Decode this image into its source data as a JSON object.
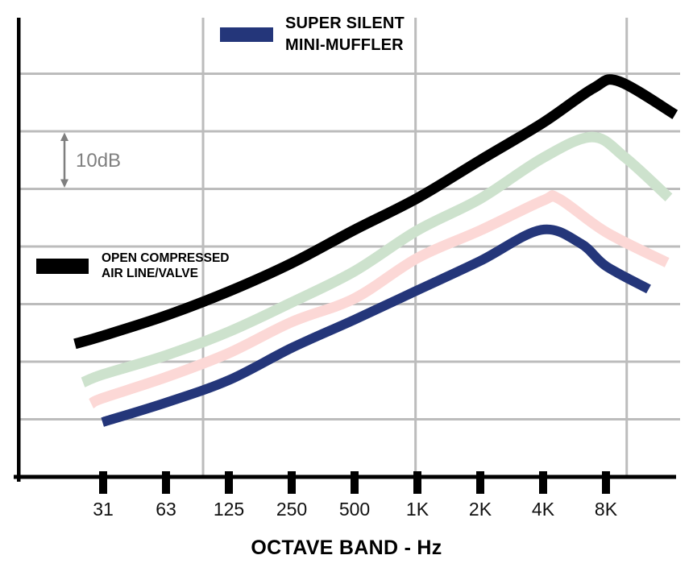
{
  "legend": {
    "mini_muffler": {
      "line1": "SUPER SILENT",
      "line2": "MINI-MUFFLER",
      "color": "#24367a"
    },
    "open_air": {
      "line1": "OPEN COMPRESSED",
      "line2": "AIR LINE/VALVE",
      "color": "#000000"
    }
  },
  "scale_marker": {
    "label": "10dB",
    "span_db": 10,
    "color": "#7f7f7f"
  },
  "chart_data": {
    "type": "line",
    "title": "",
    "xlabel": "OCTAVE BAND - Hz",
    "x_categories": [
      "31",
      "63",
      "125",
      "250",
      "500",
      "1K",
      "2K",
      "4K",
      "8K"
    ],
    "x_scale": "octave bands (log2 spacing)",
    "y_unit": "sound level in relative dB (y-axis unlabeled; 10dB interval marker shown between gridlines)",
    "grid": {
      "horizontal_lines": 7,
      "horizontal_spacing_db": 10,
      "vertical_lines_band_index": [
        1.59,
        4.97,
        8.33
      ],
      "color": "#bcbcbc"
    },
    "legend_position": "mini-muffler top-center, open-air-line mid-left",
    "series": [
      {
        "name": "OPEN COMPRESSED AIR LINE/VALVE",
        "slug": "open-air-line",
        "color": "#000000",
        "stroke_px": 13,
        "band_values_db": [
          24.5,
          28,
          32.2,
          37.1,
          42.9,
          48.4,
          55,
          61.5,
          68.4
        ],
        "points": [
          [
            -0.45,
            23.1
          ],
          [
            0,
            24.5
          ],
          [
            1,
            28
          ],
          [
            2,
            32.2
          ],
          [
            3,
            37.1
          ],
          [
            4,
            42.9
          ],
          [
            5,
            48.4
          ],
          [
            6,
            55
          ],
          [
            7,
            61.5
          ],
          [
            7.8,
            67.5
          ],
          [
            8.2,
            68.7
          ],
          [
            9.1,
            62.9
          ]
        ]
      },
      {
        "name": "unlabeled intermediate curve (upper, light green)",
        "slug": "intermediate-upper",
        "color": "#cde2cd",
        "stroke_px": 13,
        "band_values_db": [
          17.8,
          21.1,
          25.2,
          30.3,
          35.7,
          42.8,
          48.3,
          55.4,
          57.9
        ],
        "points": [
          [
            -0.32,
            16.4
          ],
          [
            0,
            17.8
          ],
          [
            1,
            21.1
          ],
          [
            2,
            25.2
          ],
          [
            3,
            30.3
          ],
          [
            4,
            35.7
          ],
          [
            5,
            42.8
          ],
          [
            6,
            48.3
          ],
          [
            7,
            55.4
          ],
          [
            7.78,
            59
          ],
          [
            8.3,
            55.5
          ],
          [
            9,
            48.5
          ]
        ]
      },
      {
        "name": "unlabeled intermediate curve (lower, light pink)",
        "slug": "intermediate-lower",
        "color": "#fcd8d6",
        "stroke_px": 13,
        "band_values_db": [
          13.7,
          17.3,
          21.5,
          26.9,
          31,
          38,
          42.8,
          48,
          42.5
        ],
        "points": [
          [
            -0.19,
            12.7
          ],
          [
            0,
            13.7
          ],
          [
            1,
            17.3
          ],
          [
            2,
            21.5
          ],
          [
            3,
            26.9
          ],
          [
            4,
            31
          ],
          [
            5,
            38
          ],
          [
            6,
            42.8
          ],
          [
            7,
            48
          ],
          [
            7.25,
            48.3
          ],
          [
            8,
            42.5
          ],
          [
            8.97,
            37.2
          ]
        ]
      },
      {
        "name": "SUPER SILENT MINI-MUFFLER",
        "slug": "mini-muffler",
        "color": "#24367a",
        "stroke_px": 12,
        "band_values_db": [
          9.5,
          12.9,
          16.8,
          22.4,
          27.3,
          32.4,
          37.5,
          42.8,
          36.6
        ],
        "points": [
          [
            -0.01,
            9.5
          ],
          [
            1,
            12.9
          ],
          [
            2,
            16.8
          ],
          [
            3,
            22.4
          ],
          [
            4,
            27.3
          ],
          [
            5,
            32.4
          ],
          [
            6,
            37.5
          ],
          [
            6.97,
            42.9
          ],
          [
            7.6,
            40.5
          ],
          [
            8,
            36.6
          ],
          [
            8.68,
            32.6
          ]
        ]
      }
    ]
  }
}
